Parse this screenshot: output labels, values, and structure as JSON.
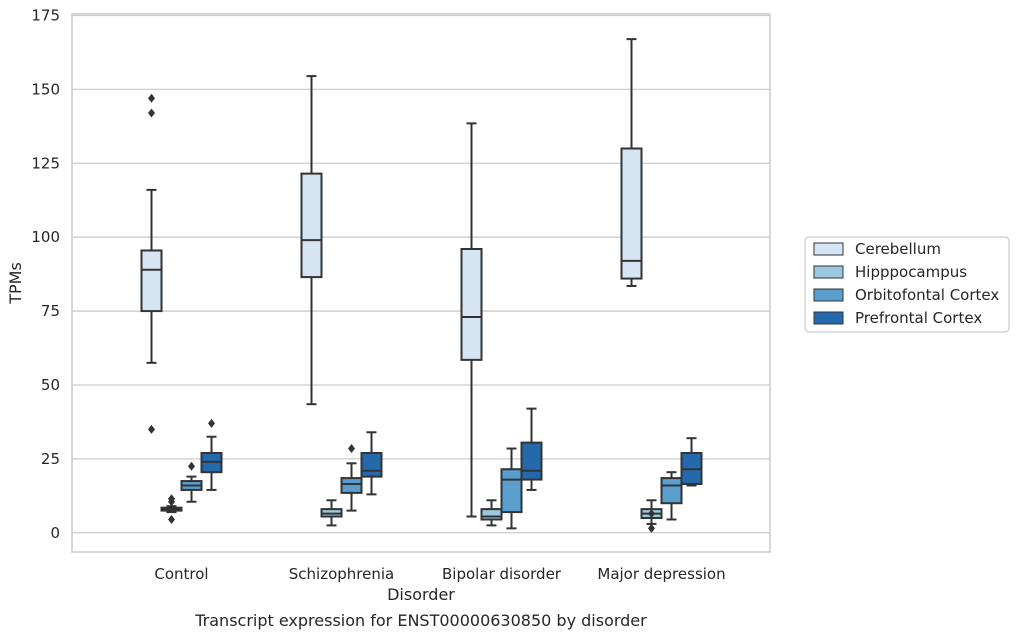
{
  "chart_data": {
    "type": "box",
    "xlabel": "Disorder",
    "ylabel": "TPMs",
    "caption": "Transcript expression for ENST00000630850 by disorder",
    "ylim": [
      -6.5,
      175.5
    ],
    "yticks": [
      0,
      25,
      50,
      75,
      100,
      125,
      150,
      175
    ],
    "grid": "horizontal",
    "legend_position": "right",
    "categories": [
      "Control",
      "Schizophrenia",
      "Bipolar disorder",
      "Major depression"
    ],
    "series": [
      {
        "name": "Cerebellum",
        "color": "#d6e5f3",
        "boxes": [
          {
            "whislo": 57.5,
            "q1": 75.0,
            "med": 89.0,
            "q3": 95.5,
            "whishi": 116.0,
            "fliers": [
              147,
              142,
              35
            ]
          },
          {
            "whislo": 43.5,
            "q1": 86.5,
            "med": 99.0,
            "q3": 121.5,
            "whishi": 154.5,
            "fliers": []
          },
          {
            "whislo": 5.5,
            "q1": 58.5,
            "med": 73.0,
            "q3": 96.0,
            "whishi": 138.5,
            "fliers": []
          },
          {
            "whislo": 83.5,
            "q1": 86.0,
            "med": 92.0,
            "q3": 130.0,
            "whishi": 167.0,
            "fliers": []
          }
        ]
      },
      {
        "name": "Hipppocampus",
        "color": "#9ac8e0",
        "boxes": [
          {
            "whislo": 7.0,
            "q1": 7.5,
            "med": 8.0,
            "q3": 8.5,
            "whishi": 9.0,
            "fliers": [
              11.5,
              10.5,
              4.5
            ]
          },
          {
            "whislo": 2.5,
            "q1": 5.5,
            "med": 6.5,
            "q3": 8.0,
            "whishi": 11.0,
            "fliers": []
          },
          {
            "whislo": 2.5,
            "q1": 4.5,
            "med": 5.5,
            "q3": 8.0,
            "whishi": 11.0,
            "fliers": []
          },
          {
            "whislo": 3.0,
            "q1": 5.0,
            "med": 6.5,
            "q3": 8.0,
            "whishi": 11.0,
            "fliers": [
              6.5,
              1.5
            ]
          }
        ]
      },
      {
        "name": "Orbitofontal Cortex",
        "color": "#5a9ecd",
        "boxes": [
          {
            "whislo": 10.5,
            "q1": 14.5,
            "med": 16.0,
            "q3": 17.5,
            "whishi": 19.0,
            "fliers": [
              22.5
            ]
          },
          {
            "whislo": 7.5,
            "q1": 13.5,
            "med": 16.5,
            "q3": 18.5,
            "whishi": 23.5,
            "fliers": [
              28.5
            ]
          },
          {
            "whislo": 1.5,
            "q1": 7.0,
            "med": 18.0,
            "q3": 21.5,
            "whishi": 28.5,
            "fliers": []
          },
          {
            "whislo": 4.5,
            "q1": 10.0,
            "med": 16.0,
            "q3": 18.5,
            "whishi": 20.5,
            "fliers": []
          }
        ]
      },
      {
        "name": "Prefrontal Cortex",
        "color": "#2369ab",
        "boxes": [
          {
            "whislo": 14.5,
            "q1": 20.5,
            "med": 24.0,
            "q3": 27.0,
            "whishi": 32.5,
            "fliers": [
              37.0
            ]
          },
          {
            "whislo": 13.0,
            "q1": 19.0,
            "med": 21.0,
            "q3": 27.0,
            "whishi": 34.0,
            "fliers": []
          },
          {
            "whislo": 14.5,
            "q1": 18.0,
            "med": 21.0,
            "q3": 30.5,
            "whishi": 42.0,
            "fliers": []
          },
          {
            "whislo": 16.0,
            "q1": 16.5,
            "med": 21.5,
            "q3": 27.0,
            "whishi": 32.0,
            "fliers": []
          }
        ]
      }
    ]
  }
}
